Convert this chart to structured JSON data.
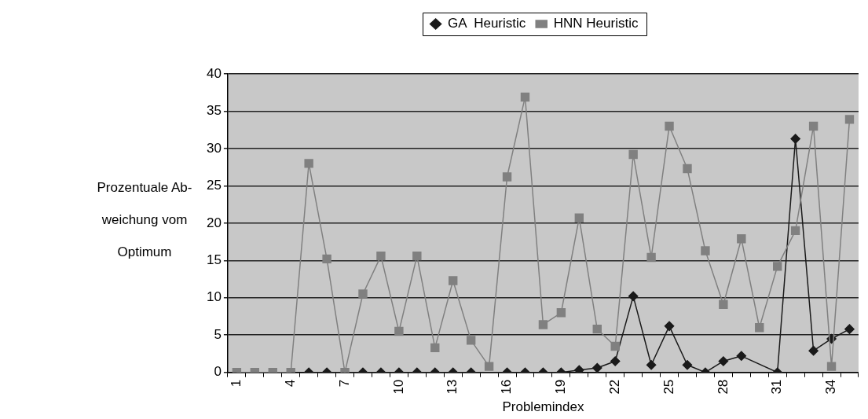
{
  "chart_data": {
    "type": "line",
    "xlabel": "Problemindex",
    "ylabel": "Prozentuale Ab-\nweichung vom\nOptimum",
    "categories": [
      "1",
      null,
      null,
      "4",
      null,
      null,
      "7",
      null,
      null,
      "10",
      null,
      null,
      "13",
      null,
      null,
      "16",
      null,
      null,
      "19",
      null,
      null,
      "22",
      null,
      null,
      "25",
      null,
      null,
      "28",
      null,
      null,
      "31",
      null,
      null,
      "34",
      null
    ],
    "series": [
      {
        "name": "GA  Heuristic",
        "color": "#1a1a1a",
        "marker": "diamond",
        "values": [
          null,
          null,
          null,
          null,
          0,
          0,
          null,
          0,
          0,
          0,
          0,
          0,
          0,
          0,
          null,
          0,
          0,
          0,
          0,
          0.3,
          0.6,
          1.5,
          10.2,
          1,
          6.2,
          1,
          0,
          1.5,
          2.2,
          null,
          0,
          31.3,
          2.9,
          4.5,
          5.8
        ]
      },
      {
        "name": "HNN Heuristic",
        "color": "#808080",
        "marker": "square",
        "values": [
          0,
          0,
          0,
          0,
          28,
          15.2,
          0,
          10.5,
          15.6,
          5.5,
          15.6,
          3.3,
          12.3,
          4.3,
          0.8,
          26.2,
          36.9,
          6.4,
          8,
          20.7,
          5.8,
          3.5,
          29.2,
          15.4,
          33,
          27.3,
          16.3,
          9.1,
          17.9,
          6,
          14.2,
          19,
          33,
          0.8,
          33.9
        ]
      }
    ],
    "ylim": [
      0,
      40
    ],
    "yticks": [
      0,
      5,
      10,
      15,
      20,
      25,
      30,
      35,
      40
    ],
    "grid": "y",
    "legend": "top",
    "line_style": "solid"
  }
}
